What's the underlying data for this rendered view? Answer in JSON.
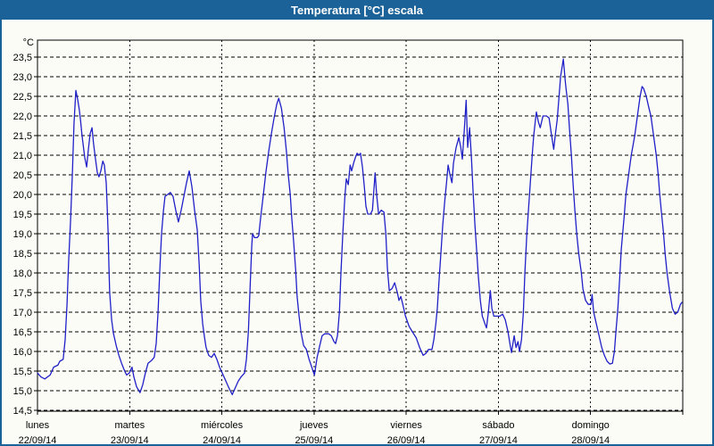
{
  "window": {
    "title": "Temperatura [°C] escala",
    "title_bar_color": "#1B6298",
    "background_color": "#FCFCF7"
  },
  "chart_data": {
    "type": "line",
    "title": "Temperatura [°C] escala",
    "line_color": "#2020C8",
    "grid_color": "#000000",
    "legend": "none",
    "grid": "dashed",
    "y_axis": {
      "unit_label": "°C",
      "min": 14.5,
      "max": 23.5,
      "tick_step": 0.5,
      "tick_labels": [
        "23,5",
        "23,0",
        "22,5",
        "22,0",
        "21,5",
        "21,0",
        "20,5",
        "20,0",
        "19,5",
        "19,0",
        "18,5",
        "18,0",
        "17,5",
        "17,0",
        "16,5",
        "16,0",
        "15,5",
        "15,0",
        "14,5"
      ]
    },
    "x_axis": {
      "hours_total": 168,
      "days": [
        {
          "name": "lunes",
          "date": "22/09/14"
        },
        {
          "name": "martes",
          "date": "23/09/14"
        },
        {
          "name": "miércoles",
          "date": "24/09/14"
        },
        {
          "name": "jueves",
          "date": "25/09/14"
        },
        {
          "name": "viernes",
          "date": "26/09/14"
        },
        {
          "name": "sábado",
          "date": "27/09/14"
        },
        {
          "name": "domingo",
          "date": "28/09/14"
        }
      ]
    },
    "series": [
      {
        "name": "Temperatura",
        "points": [
          [
            0,
            15.45
          ],
          [
            0.9,
            15.35
          ],
          [
            1.9,
            15.3
          ],
          [
            3.3,
            15.4
          ],
          [
            4.2,
            15.6
          ],
          [
            5.3,
            15.65
          ],
          [
            5.8,
            15.75
          ],
          [
            6.7,
            15.8
          ],
          [
            7.2,
            16.3
          ],
          [
            7.7,
            17.2
          ],
          [
            8.1,
            18.3
          ],
          [
            8.6,
            19.3
          ],
          [
            9.1,
            20.6
          ],
          [
            9.5,
            21.8
          ],
          [
            10,
            22.65
          ],
          [
            10.5,
            22.4
          ],
          [
            10.9,
            22.15
          ],
          [
            11.2,
            21.9
          ],
          [
            11.6,
            21.5
          ],
          [
            12.3,
            20.95
          ],
          [
            12.8,
            20.7
          ],
          [
            13.2,
            21.1
          ],
          [
            13.7,
            21.55
          ],
          [
            14.2,
            21.7
          ],
          [
            14.6,
            21.3
          ],
          [
            15.1,
            20.9
          ],
          [
            15.6,
            20.55
          ],
          [
            16,
            20.45
          ],
          [
            16.5,
            20.6
          ],
          [
            17,
            20.85
          ],
          [
            17.4,
            20.75
          ],
          [
            17.9,
            20.3
          ],
          [
            18.1,
            19.8
          ],
          [
            18.4,
            19
          ],
          [
            18.6,
            18.2
          ],
          [
            18.8,
            17.5
          ],
          [
            19.3,
            16.8
          ],
          [
            19.8,
            16.45
          ],
          [
            20.5,
            16.15
          ],
          [
            21.2,
            15.9
          ],
          [
            21.9,
            15.7
          ],
          [
            22.5,
            15.55
          ],
          [
            23.2,
            15.4
          ],
          [
            23.9,
            15.45
          ],
          [
            24.6,
            15.6
          ],
          [
            25.1,
            15.35
          ],
          [
            25.8,
            15.1
          ],
          [
            26.7,
            14.95
          ],
          [
            27.4,
            15.15
          ],
          [
            28.1,
            15.45
          ],
          [
            28.8,
            15.7
          ],
          [
            29.8,
            15.78
          ],
          [
            30.4,
            15.85
          ],
          [
            30.9,
            16.2
          ],
          [
            31.4,
            17
          ],
          [
            31.8,
            18
          ],
          [
            32.3,
            19
          ],
          [
            32.8,
            19.6
          ],
          [
            33.2,
            19.95
          ],
          [
            33.9,
            20
          ],
          [
            34.6,
            20.05
          ],
          [
            35.3,
            19.95
          ],
          [
            36,
            19.6
          ],
          [
            36.7,
            19.3
          ],
          [
            37.4,
            19.6
          ],
          [
            38.1,
            19.95
          ],
          [
            38.8,
            20.3
          ],
          [
            39.5,
            20.6
          ],
          [
            40.2,
            20.2
          ],
          [
            40.9,
            19.6
          ],
          [
            41.6,
            19.1
          ],
          [
            42.1,
            18.2
          ],
          [
            42.5,
            17.3
          ],
          [
            43,
            16.7
          ],
          [
            43.5,
            16.35
          ],
          [
            43.9,
            16.1
          ],
          [
            44.6,
            15.9
          ],
          [
            45.3,
            15.85
          ],
          [
            46,
            15.95
          ],
          [
            46.7,
            15.8
          ],
          [
            47.4,
            15.6
          ],
          [
            48.1,
            15.45
          ],
          [
            48.8,
            15.3
          ],
          [
            49.7,
            15.1
          ],
          [
            50.7,
            14.9
          ],
          [
            51.6,
            15.1
          ],
          [
            52.3,
            15.25
          ],
          [
            53,
            15.35
          ],
          [
            53.9,
            15.45
          ],
          [
            54.4,
            15.8
          ],
          [
            54.9,
            16.5
          ],
          [
            55.3,
            17.5
          ],
          [
            55.8,
            18.7
          ],
          [
            56,
            19
          ],
          [
            56.5,
            18.9
          ],
          [
            57.2,
            18.9
          ],
          [
            57.6,
            18.95
          ],
          [
            58.1,
            19.4
          ],
          [
            58.8,
            20
          ],
          [
            59.5,
            20.6
          ],
          [
            60.2,
            21.1
          ],
          [
            60.9,
            21.55
          ],
          [
            61.6,
            21.95
          ],
          [
            62.3,
            22.3
          ],
          [
            62.8,
            22.45
          ],
          [
            63.5,
            22.2
          ],
          [
            64.2,
            21.7
          ],
          [
            64.8,
            21.1
          ],
          [
            65.3,
            20.5
          ],
          [
            65.8,
            20
          ],
          [
            66.2,
            19.4
          ],
          [
            66.7,
            18.8
          ],
          [
            67.2,
            18.1
          ],
          [
            67.6,
            17.4
          ],
          [
            68.1,
            16.9
          ],
          [
            68.6,
            16.5
          ],
          [
            69.3,
            16.15
          ],
          [
            70,
            16.05
          ],
          [
            70.7,
            15.8
          ],
          [
            71.4,
            15.6
          ],
          [
            72.1,
            15.4
          ],
          [
            72.8,
            15.85
          ],
          [
            73.5,
            16.15
          ],
          [
            74.1,
            16.4
          ],
          [
            74.8,
            16.45
          ],
          [
            75.8,
            16.45
          ],
          [
            76.5,
            16.4
          ],
          [
            77.2,
            16.25
          ],
          [
            77.6,
            16.2
          ],
          [
            78.1,
            16.4
          ],
          [
            78.6,
            17
          ],
          [
            79,
            18
          ],
          [
            79.5,
            19
          ],
          [
            80,
            19.9
          ],
          [
            80.4,
            20.4
          ],
          [
            80.9,
            20.25
          ],
          [
            81.4,
            20.75
          ],
          [
            81.8,
            20.6
          ],
          [
            82.3,
            20.8
          ],
          [
            82.8,
            20.95
          ],
          [
            83.2,
            21.05
          ],
          [
            83.7,
            21
          ],
          [
            84.1,
            21.05
          ],
          [
            84.6,
            20.7
          ],
          [
            85.1,
            20.2
          ],
          [
            85.5,
            19.7
          ],
          [
            86,
            19.5
          ],
          [
            86.7,
            19.5
          ],
          [
            87.2,
            19.6
          ],
          [
            87.9,
            20.55
          ],
          [
            88.3,
            20
          ],
          [
            88.8,
            19.5
          ],
          [
            89.5,
            19.6
          ],
          [
            90.2,
            19.55
          ],
          [
            90.7,
            19
          ],
          [
            91.1,
            18.1
          ],
          [
            91.6,
            17.55
          ],
          [
            92.3,
            17.6
          ],
          [
            93,
            17.75
          ],
          [
            93.7,
            17.5
          ],
          [
            94.1,
            17.3
          ],
          [
            94.6,
            17.4
          ],
          [
            95.1,
            17.2
          ],
          [
            95.8,
            16.9
          ],
          [
            96.7,
            16.65
          ],
          [
            97.6,
            16.5
          ],
          [
            98.6,
            16.35
          ],
          [
            99.5,
            16.1
          ],
          [
            100.4,
            15.9
          ],
          [
            101.1,
            15.95
          ],
          [
            101.8,
            16.05
          ],
          [
            102.7,
            16.05
          ],
          [
            103.2,
            16.3
          ],
          [
            103.7,
            16.7
          ],
          [
            104.1,
            17.1
          ],
          [
            104.6,
            17.9
          ],
          [
            105.1,
            18.6
          ],
          [
            105.5,
            19.2
          ],
          [
            106,
            19.8
          ],
          [
            106.5,
            20.3
          ],
          [
            106.9,
            20.75
          ],
          [
            107.4,
            20.5
          ],
          [
            107.9,
            20.3
          ],
          [
            108.3,
            20.8
          ],
          [
            109,
            21.2
          ],
          [
            109.7,
            21.45
          ],
          [
            110.2,
            21.2
          ],
          [
            110.6,
            20.9
          ],
          [
            111.1,
            21.6
          ],
          [
            111.6,
            22.4
          ],
          [
            112,
            21.2
          ],
          [
            112.5,
            21.7
          ],
          [
            113,
            20.9
          ],
          [
            113.4,
            20.1
          ],
          [
            113.9,
            19.2
          ],
          [
            114.4,
            18.5
          ],
          [
            114.8,
            17.9
          ],
          [
            115.3,
            17.3
          ],
          [
            115.8,
            16.9
          ],
          [
            116.5,
            16.7
          ],
          [
            116.9,
            16.6
          ],
          [
            117.4,
            17
          ],
          [
            117.9,
            17.55
          ],
          [
            118.3,
            17.1
          ],
          [
            118.8,
            16.9
          ],
          [
            119.5,
            16.9
          ],
          [
            120.4,
            16.9
          ],
          [
            121.1,
            16.95
          ],
          [
            121.8,
            16.8
          ],
          [
            122.5,
            16.5
          ],
          [
            123,
            16.2
          ],
          [
            123.4,
            15.97
          ],
          [
            124.1,
            16.4
          ],
          [
            124.6,
            16.1
          ],
          [
            125.1,
            16.25
          ],
          [
            125.5,
            16
          ],
          [
            126,
            16.3
          ],
          [
            126.5,
            17
          ],
          [
            126.9,
            18
          ],
          [
            127.4,
            19
          ],
          [
            128.1,
            20
          ],
          [
            128.8,
            21
          ],
          [
            129.2,
            21.5
          ],
          [
            129.7,
            21.95
          ],
          [
            129.9,
            22.1
          ],
          [
            130.4,
            21.85
          ],
          [
            130.9,
            21.7
          ],
          [
            131.6,
            22
          ],
          [
            132.5,
            22
          ],
          [
            133.2,
            21.95
          ],
          [
            133.7,
            21.6
          ],
          [
            134.4,
            21.15
          ],
          [
            134.8,
            21.5
          ],
          [
            135.3,
            21.9
          ],
          [
            135.8,
            22.5
          ],
          [
            136.2,
            23
          ],
          [
            136.9,
            23.45
          ],
          [
            137.4,
            22.9
          ],
          [
            137.6,
            22.7
          ],
          [
            138.1,
            22.3
          ],
          [
            138.5,
            21.7
          ],
          [
            139,
            21
          ],
          [
            139.5,
            20.2
          ],
          [
            139.9,
            19.6
          ],
          [
            140.4,
            19
          ],
          [
            140.9,
            18.5
          ],
          [
            141.6,
            18
          ],
          [
            142,
            17.6
          ],
          [
            142.7,
            17.3
          ],
          [
            143.4,
            17.2
          ],
          [
            144.1,
            17.2
          ],
          [
            144.4,
            17.45
          ],
          [
            144.8,
            17
          ],
          [
            145.5,
            16.7
          ],
          [
            146.2,
            16.4
          ],
          [
            146.9,
            16.1
          ],
          [
            147.6,
            15.9
          ],
          [
            148.3,
            15.75
          ],
          [
            149,
            15.68
          ],
          [
            149.7,
            15.7
          ],
          [
            150.2,
            16
          ],
          [
            150.6,
            16.5
          ],
          [
            151.1,
            17.1
          ],
          [
            151.6,
            17.9
          ],
          [
            152,
            18.6
          ],
          [
            152.7,
            19.4
          ],
          [
            153.2,
            20
          ],
          [
            153.9,
            20.5
          ],
          [
            154.6,
            21
          ],
          [
            155.5,
            21.5
          ],
          [
            156.2,
            22
          ],
          [
            156.9,
            22.5
          ],
          [
            157.4,
            22.75
          ],
          [
            157.8,
            22.7
          ],
          [
            158.5,
            22.5
          ],
          [
            159.2,
            22.2
          ],
          [
            159.7,
            22
          ],
          [
            160.4,
            21.5
          ],
          [
            161.1,
            21
          ],
          [
            161.6,
            20.5
          ],
          [
            162,
            20
          ],
          [
            162.5,
            19.5
          ],
          [
            163,
            19
          ],
          [
            163.4,
            18.5
          ],
          [
            163.9,
            18
          ],
          [
            164.6,
            17.5
          ],
          [
            165.3,
            17.1
          ],
          [
            166,
            16.95
          ],
          [
            166.7,
            17
          ],
          [
            167.4,
            17.2
          ],
          [
            167.8,
            17.25
          ]
        ]
      }
    ]
  }
}
